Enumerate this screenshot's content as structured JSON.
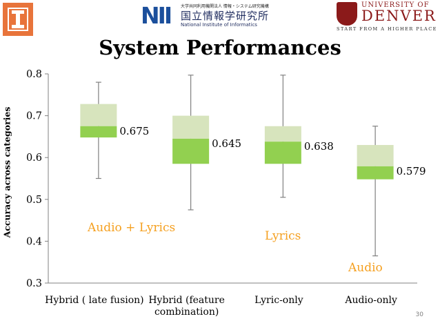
{
  "header": {
    "nii": {
      "mark": "NII",
      "small_text": "大学共同利用機関法人 情報・システム研究機構",
      "jp_name": "国立情報学研究所",
      "en_name": "National Institute of Informatics"
    },
    "denver": {
      "line1": "UNIVERSITY OF",
      "line2": "DENVER",
      "tagline": "START FROM A HIGHER PLACE"
    }
  },
  "slide": {
    "title": "System Performances",
    "page_number": "30"
  },
  "colors": {
    "box_upper": "#d7e4bd",
    "box_lower": "#92d050",
    "annotation": "#f5a020",
    "whisker": "#808080",
    "illinois_orange": "#e8743b",
    "nii_blue": "#1b4f9c",
    "denver_red": "#8b1a1a"
  },
  "chart_data": {
    "type": "box",
    "ylabel": "Accuracy across categories",
    "xlabel": "",
    "ylim": [
      0.3,
      0.8
    ],
    "yticks": [
      "0.3",
      "0.4",
      "0.5",
      "0.6",
      "0.7",
      "0.8"
    ],
    "grid": false,
    "categories": [
      "Hybrid ( late fusion)",
      "Hybrid (feature combination)",
      "Lyric-only",
      "Audio-only"
    ],
    "category_labels": [
      [
        "Hybrid ( late fusion)"
      ],
      [
        "Hybrid (feature",
        "combination)"
      ],
      [
        "Lyric-only"
      ],
      [
        "Audio-only"
      ]
    ],
    "boxes": [
      {
        "min": 0.55,
        "q1": 0.648,
        "median": 0.675,
        "q3": 0.728,
        "max": 0.78,
        "label": "0.675"
      },
      {
        "min": 0.475,
        "q1": 0.585,
        "median": 0.645,
        "q3": 0.7,
        "max": 0.797,
        "label": "0.645"
      },
      {
        "min": 0.505,
        "q1": 0.585,
        "median": 0.638,
        "q3": 0.675,
        "max": 0.797,
        "label": "0.638"
      },
      {
        "min": 0.365,
        "q1": 0.548,
        "median": 0.579,
        "q3": 0.63,
        "max": 0.675,
        "label": "0.579"
      }
    ],
    "annotations": [
      "Audio + Lyrics",
      "Lyrics",
      "Audio"
    ]
  }
}
